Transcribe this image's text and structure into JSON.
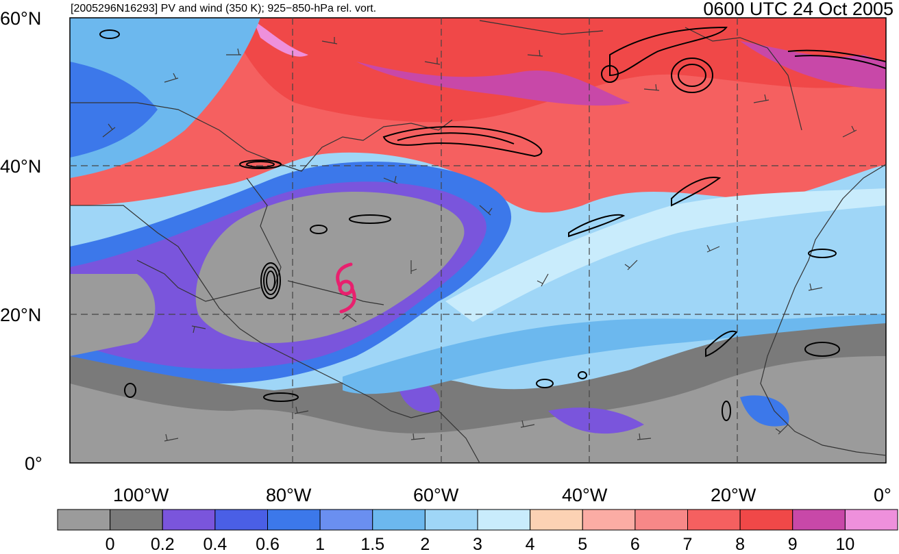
{
  "header": {
    "left_title": "[2005296N16293] PV and wind (350 K); 925−850-hPa rel. vort.",
    "right_title": "0600 UTC 24 Oct 2005"
  },
  "axes": {
    "lat_labels": [
      "60°N",
      "40°N",
      "20°N",
      "0°"
    ],
    "lon_labels": [
      "100°W",
      "80°W",
      "60°W",
      "40°W",
      "20°W",
      "0°"
    ]
  },
  "colorbar": {
    "labels": [
      "0",
      "0.2",
      "0.4",
      "0.6",
      "1",
      "1.5",
      "2",
      "3",
      "4",
      "5",
      "6",
      "7",
      "8",
      "9",
      "10"
    ],
    "colors": [
      "#9b9b9b",
      "#7a7a7a",
      "#7a55dc",
      "#4a5fe6",
      "#3c78ea",
      "#6a8ff0",
      "#6cb8ee",
      "#9fd6f7",
      "#c9ecfc",
      "#fcd2b4",
      "#fbaca4",
      "#f78888",
      "#f56060",
      "#f04848",
      "#c848a8",
      "#ee90dc"
    ]
  },
  "map": {
    "storm_icon": "hurricane-symbol-icon",
    "storm_color": "#e8206e",
    "contour_color": "#000000",
    "barb_color": "#3a3a3a"
  }
}
